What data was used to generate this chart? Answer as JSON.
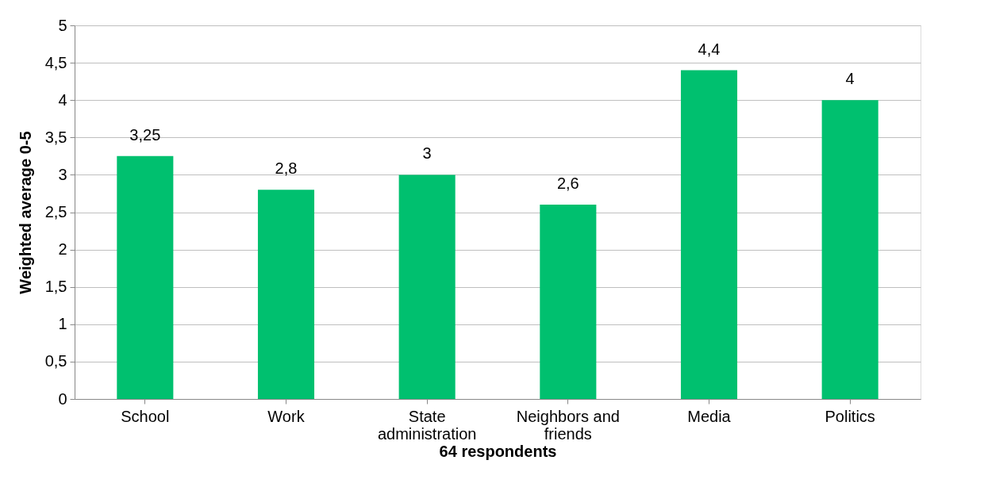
{
  "chart_data": {
    "type": "bar",
    "xlabel": "64 respondents",
    "ylabel": "Weighted average 0-5",
    "categories": [
      "School",
      "Work",
      "State administration",
      "Neighbors and friends",
      "Media",
      "Politics"
    ],
    "values": [
      3.25,
      2.8,
      3,
      2.6,
      4.4,
      4
    ],
    "value_labels": [
      "3,25",
      "2,8",
      "3",
      "2,6",
      "4,4",
      "4"
    ],
    "color": "#00c06f",
    "ylim": [
      0,
      5
    ],
    "yticks": [
      0,
      {
        "value": 0.5,
        "label": "0,5"
      },
      1,
      {
        "value": 1.5,
        "label": "1,5"
      },
      2,
      {
        "value": 2.5,
        "label": "2,5"
      },
      3,
      {
        "value": 3.5,
        "label": "3,5"
      },
      4,
      {
        "value": 4.5,
        "label": "4,5"
      },
      5
    ],
    "grid": "y"
  }
}
